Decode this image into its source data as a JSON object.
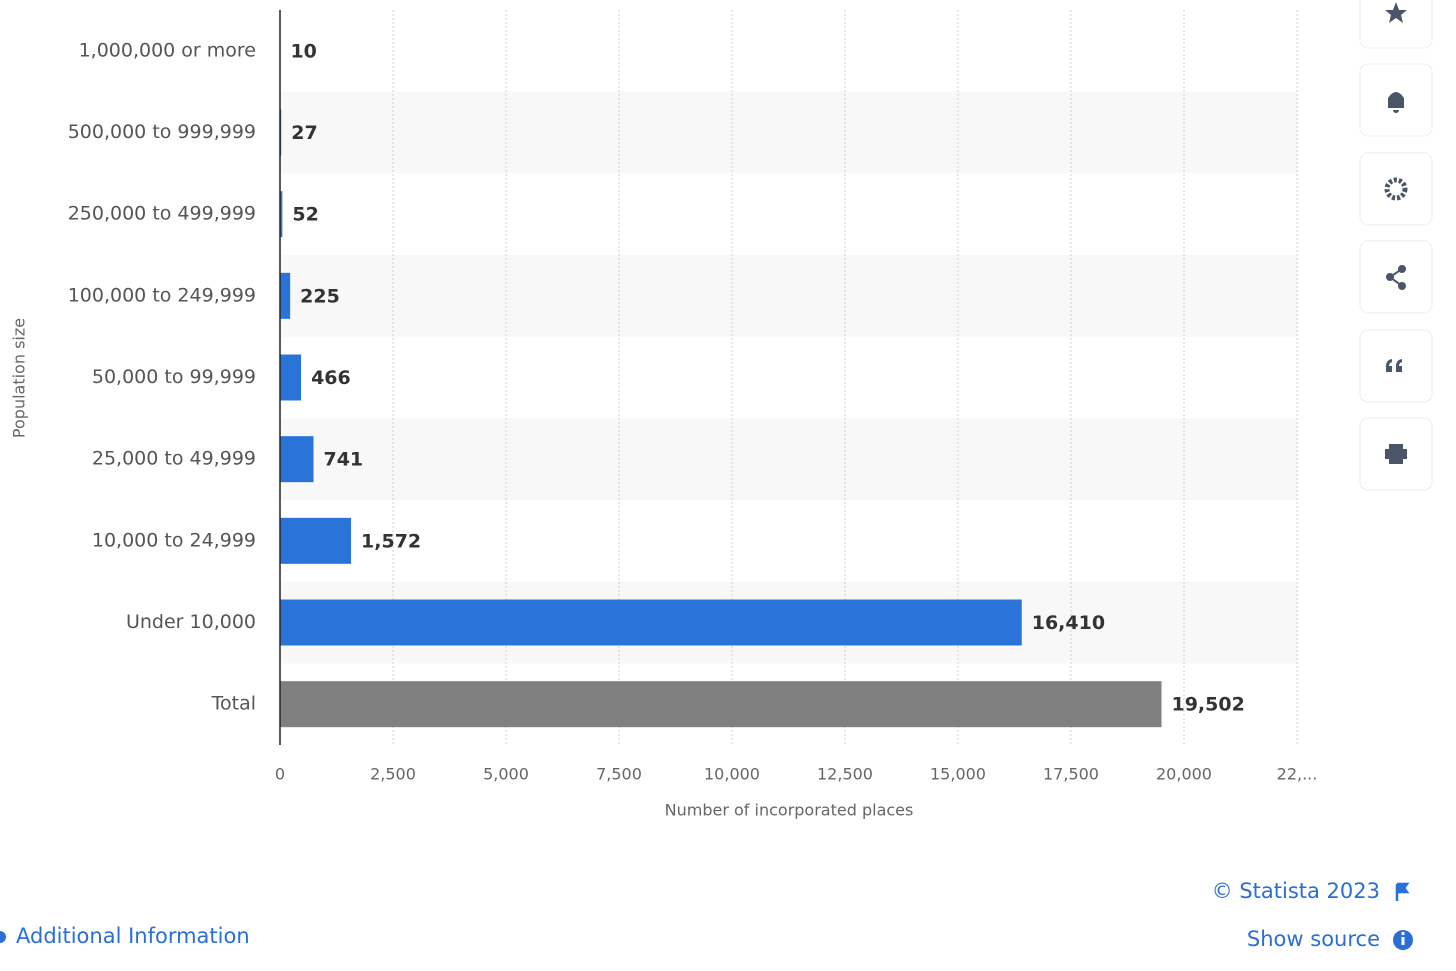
{
  "chart_data": {
    "type": "bar",
    "orientation": "horizontal",
    "categories": [
      "1,000,000 or more",
      "500,000 to 999,999",
      "250,000 to 499,999",
      "100,000 to 249,999",
      "50,000 to 99,999",
      "25,000 to 49,999",
      "10,000 to 24,999",
      "Under 10,000",
      "Total"
    ],
    "values": [
      10,
      27,
      52,
      225,
      466,
      741,
      1572,
      16410,
      19502
    ],
    "value_labels": [
      "10",
      "27",
      "52",
      "225",
      "466",
      "741",
      "1,572",
      "16,410",
      "19,502"
    ],
    "colors": [
      "#2a73d9",
      "#2a73d9",
      "#2a73d9",
      "#2a73d9",
      "#2a73d9",
      "#2a73d9",
      "#2a73d9",
      "#2a73d9",
      "#808080"
    ],
    "xlim": [
      0,
      22500
    ],
    "xticks": [
      0,
      {
        "value": 2500,
        "label": "2,500"
      },
      {
        "value": 5000,
        "label": "5,000"
      },
      {
        "value": 7500,
        "label": "7,500"
      },
      {
        "value": 10000,
        "label": "10,000"
      },
      {
        "value": 12500,
        "label": "12,500"
      },
      {
        "value": 15000,
        "label": "15,000"
      },
      {
        "value": 17500,
        "label": "17,500"
      },
      {
        "value": 20000,
        "label": "20,000"
      },
      {
        "value": 22500,
        "label": "22,..."
      }
    ],
    "xlabel": "Number of incorporated places",
    "ylabel": "Population size",
    "grid": true
  },
  "footer": {
    "copyright": "© Statista 2023",
    "show_source": "Show source",
    "additional_info": "Additional Information"
  }
}
